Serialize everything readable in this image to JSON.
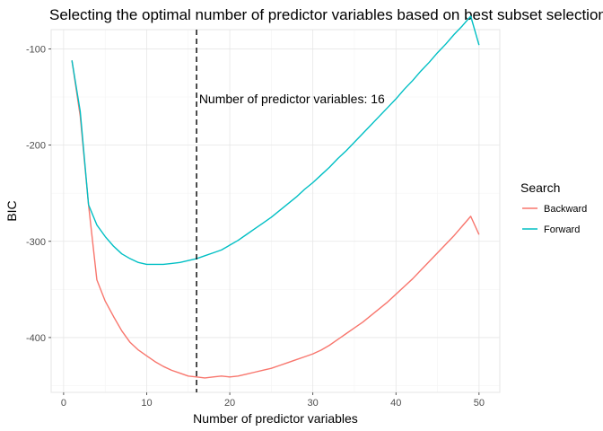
{
  "chart_data": {
    "type": "line",
    "title": "Selecting the optimal number of predictor variables based on best subset selection",
    "xlabel": "Number of predictor variables",
    "ylabel": "BIC",
    "xlim": [
      -1.5,
      52.5
    ],
    "ylim": [
      -457,
      -80
    ],
    "x_ticks": [
      0,
      10,
      20,
      30,
      40,
      50
    ],
    "y_ticks": [
      -100,
      -200,
      -300,
      -400
    ],
    "grid": true,
    "legend": {
      "title": "Search",
      "position": "right"
    },
    "series": [
      {
        "name": "Backward",
        "color": "#F8766D",
        "x": [
          1,
          2,
          3,
          4,
          5,
          6,
          7,
          8,
          9,
          10,
          11,
          12,
          13,
          14,
          15,
          16,
          17,
          18,
          19,
          20,
          21,
          22,
          23,
          24,
          25,
          26,
          27,
          28,
          29,
          30,
          31,
          32,
          33,
          34,
          35,
          36,
          37,
          38,
          39,
          40,
          41,
          42,
          43,
          44,
          45,
          46,
          47,
          48,
          49,
          50
        ],
        "values": [
          -112,
          -170,
          -262,
          -340,
          -362,
          -378,
          -393,
          -405,
          -413,
          -419,
          -425,
          -430,
          -434,
          -437,
          -440,
          -441,
          -442,
          -441,
          -440,
          -441,
          -440,
          -438,
          -436,
          -434,
          -432,
          -429,
          -426,
          -423,
          -420,
          -417,
          -413,
          -408,
          -402,
          -396,
          -390,
          -384,
          -377,
          -370,
          -363,
          -355,
          -347,
          -339,
          -330,
          -321,
          -312,
          -303,
          -294,
          -284,
          -274,
          -293
        ]
      },
      {
        "name": "Forward",
        "color": "#00BFC4",
        "x": [
          1,
          2,
          3,
          4,
          5,
          6,
          7,
          8,
          9,
          10,
          11,
          12,
          13,
          14,
          15,
          16,
          17,
          18,
          19,
          20,
          21,
          22,
          23,
          24,
          25,
          26,
          27,
          28,
          29,
          30,
          31,
          32,
          33,
          34,
          35,
          36,
          37,
          38,
          39,
          40,
          41,
          42,
          43,
          44,
          45,
          46,
          47,
          48,
          49,
          50
        ],
        "values": [
          -112,
          -165,
          -262,
          -283,
          -295,
          -305,
          -313,
          -318,
          -322,
          -324,
          -324,
          -324,
          -323,
          -322,
          -320,
          -318,
          -315,
          -312,
          -309,
          -304,
          -299,
          -293,
          -287,
          -281,
          -275,
          -268,
          -261,
          -254,
          -246,
          -239,
          -231,
          -223,
          -214,
          -206,
          -197,
          -188,
          -179,
          -170,
          -161,
          -152,
          -142,
          -133,
          -123,
          -114,
          -104,
          -95,
          -85,
          -76,
          -66,
          -96
        ]
      }
    ],
    "annotations": [
      {
        "type": "vline",
        "x": 16
      },
      {
        "type": "text",
        "text": "Number of predictor variables: 16",
        "x": 16.3,
        "y": -152
      }
    ]
  }
}
